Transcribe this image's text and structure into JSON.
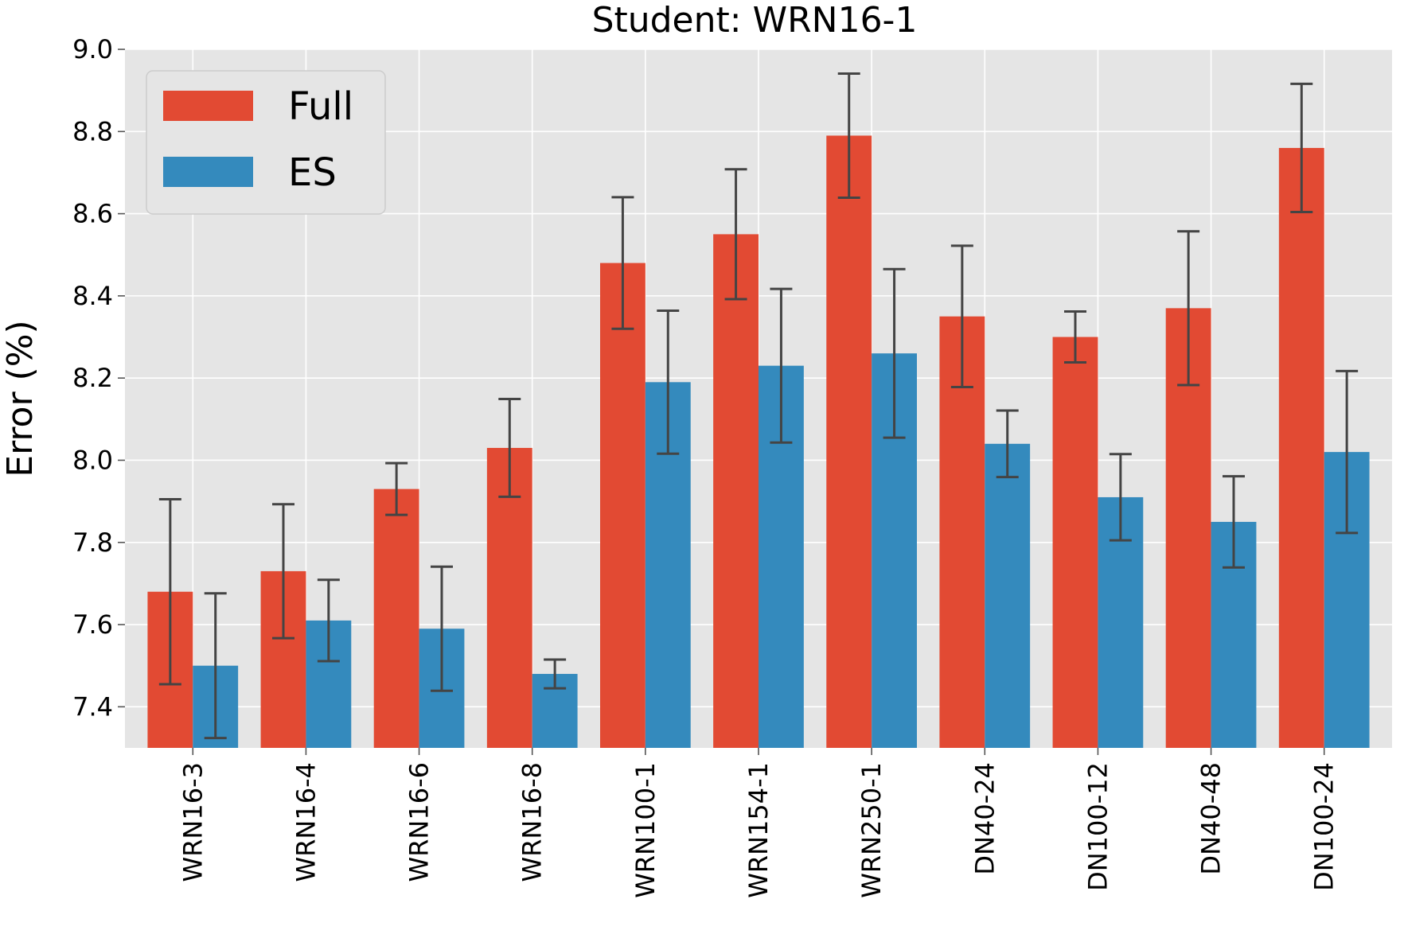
{
  "chart_data": {
    "type": "bar",
    "title": "Student: WRN16-1",
    "xlabel": "",
    "ylabel": "Error (%)",
    "ylim": [
      7.3,
      9.0
    ],
    "yticks": [
      "7.4",
      "7.6",
      "7.8",
      "8.0",
      "8.2",
      "8.4",
      "8.6",
      "8.8",
      "9.0"
    ],
    "grid": true,
    "legend_position": "top-left",
    "categories": [
      "WRN16-3",
      "WRN16-4",
      "WRN16-6",
      "WRN16-8",
      "WRN100-1",
      "WRN154-1",
      "WRN250-1",
      "DN40-24",
      "DN100-12",
      "DN40-48",
      "DN100-24"
    ],
    "series": [
      {
        "name": "Full",
        "color": "#E24A33",
        "values": [
          7.68,
          7.73,
          7.93,
          8.03,
          8.48,
          8.55,
          8.79,
          8.35,
          8.3,
          8.37,
          8.76
        ],
        "errors": [
          0.225,
          0.163,
          0.063,
          0.119,
          0.16,
          0.158,
          0.151,
          0.172,
          0.062,
          0.187,
          0.156
        ]
      },
      {
        "name": "ES",
        "color": "#348ABD",
        "values": [
          7.5,
          7.61,
          7.59,
          7.48,
          8.19,
          8.23,
          8.26,
          8.04,
          7.91,
          7.85,
          8.02
        ],
        "errors": [
          0.176,
          0.099,
          0.151,
          0.035,
          0.174,
          0.187,
          0.205,
          0.081,
          0.105,
          0.111,
          0.197
        ]
      }
    ]
  }
}
